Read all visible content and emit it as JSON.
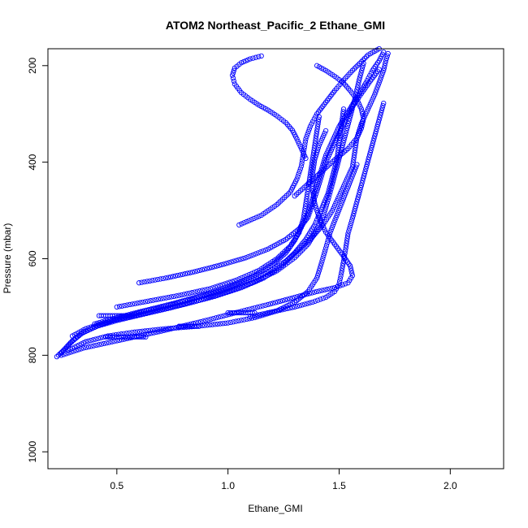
{
  "chart_data": {
    "type": "scatter",
    "title": "ATOM2 Northeast_Pacific_2 Ethane_GMI",
    "xlabel": "Ethane_GMI",
    "ylabel": "Pressure (mbar)",
    "xlim": [
      0.19,
      2.24
    ],
    "ylim": [
      1035,
      165
    ],
    "y_reversed": true,
    "x_ticks": [
      0.5,
      1.0,
      1.5,
      2.0
    ],
    "x_tick_labels": [
      "0.5",
      "1.0",
      "1.5",
      "2.0"
    ],
    "y_ticks": [
      200,
      400,
      600,
      800,
      1000
    ],
    "y_tick_labels": [
      "200",
      "400",
      "600",
      "800",
      "1000"
    ],
    "grid": false,
    "legend": "none",
    "marker": "open-circle",
    "point_color": "#0000ff",
    "series": [
      {
        "x": [
          0.23,
          0.26,
          0.3,
          0.35,
          0.42,
          0.5,
          0.6,
          0.72,
          0.85,
          0.98,
          1.08,
          1.18,
          1.26,
          1.32,
          1.38,
          1.43,
          1.47,
          1.5,
          1.53,
          1.56,
          1.57,
          1.58,
          1.6,
          1.63,
          1.66,
          1.68,
          1.7,
          1.71,
          1.72
        ],
        "y": [
          803,
          790,
          770,
          752,
          738,
          725,
          712,
          698,
          682,
          665,
          648,
          628,
          605,
          580,
          555,
          528,
          500,
          470,
          440,
          410,
          380,
          350,
          320,
          290,
          260,
          235,
          210,
          190,
          175
        ]
      },
      {
        "x": [
          0.25,
          0.29,
          0.34,
          0.41,
          0.5,
          0.61,
          0.74,
          0.87,
          1.0,
          1.12,
          1.22,
          1.3,
          1.36,
          1.4,
          1.43,
          1.45,
          1.47,
          1.49,
          1.51,
          1.53,
          1.55,
          1.57,
          1.59,
          1.61
        ],
        "y": [
          795,
          775,
          755,
          740,
          728,
          716,
          702,
          686,
          668,
          648,
          625,
          598,
          570,
          540,
          510,
          478,
          445,
          410,
          375,
          340,
          305,
          270,
          230,
          195
        ]
      },
      {
        "x": [
          0.3,
          0.36,
          0.44,
          0.54,
          0.66,
          0.8,
          0.94,
          1.06,
          1.16,
          1.24,
          1.3,
          1.35,
          1.39,
          1.42,
          1.45,
          1.47,
          1.49,
          1.5,
          1.51,
          1.52
        ],
        "y": [
          760,
          745,
          733,
          722,
          710,
          695,
          678,
          660,
          640,
          615,
          588,
          560,
          530,
          498,
          465,
          430,
          395,
          360,
          325,
          290
        ]
      },
      {
        "x": [
          0.4,
          0.5,
          0.62,
          0.76,
          0.9,
          1.02,
          1.12,
          1.2,
          1.26,
          1.3,
          1.33,
          1.36,
          1.38,
          1.4,
          1.42,
          1.44,
          1.47,
          1.5,
          1.54,
          1.58,
          1.62,
          1.65,
          1.68,
          1.7
        ],
        "y": [
          735,
          722,
          708,
          692,
          674,
          655,
          635,
          612,
          588,
          562,
          535,
          506,
          476,
          446,
          416,
          386,
          356,
          326,
          296,
          266,
          236,
          210,
          190,
          172
        ]
      },
      {
        "x": [
          0.25,
          0.35,
          0.5,
          0.7,
          0.9,
          1.05,
          1.18,
          1.3,
          1.4,
          1.48,
          1.54,
          1.56,
          1.55,
          1.52,
          1.48,
          1.44,
          1.41,
          1.39,
          1.38,
          1.38,
          1.39,
          1.41,
          1.44
        ],
        "y": [
          800,
          785,
          770,
          750,
          728,
          710,
          695,
          680,
          668,
          660,
          650,
          635,
          615,
          595,
          570,
          545,
          515,
          485,
          455,
          425,
          395,
          365,
          335
        ]
      },
      {
        "x": [
          1.1,
          1.2,
          1.3,
          1.38,
          1.44,
          1.48,
          1.5,
          1.51,
          1.52,
          1.53,
          1.54,
          1.56,
          1.58,
          1.6,
          1.62,
          1.64,
          1.66,
          1.68,
          1.7
        ],
        "y": [
          720,
          710,
          700,
          690,
          680,
          668,
          652,
          630,
          605,
          578,
          548,
          516,
          482,
          448,
          414,
          380,
          346,
          312,
          278
        ]
      },
      {
        "x": [
          0.28,
          0.36,
          0.46,
          0.58,
          0.72,
          0.86,
          1.0,
          1.12,
          1.22,
          1.3,
          1.36,
          1.4,
          1.42,
          1.44,
          1.46,
          1.49,
          1.52,
          1.55,
          1.58
        ],
        "y": [
          790,
          772,
          760,
          752,
          745,
          740,
          733,
          722,
          708,
          690,
          668,
          640,
          610,
          578,
          545,
          510,
          475,
          440,
          405
        ]
      },
      {
        "x": [
          0.6,
          0.72,
          0.84,
          0.96,
          1.08,
          1.18,
          1.26,
          1.32,
          1.36,
          1.38,
          1.4,
          1.42,
          1.44,
          1.47,
          1.5,
          1.53,
          1.56,
          1.6,
          1.64,
          1.68
        ],
        "y": [
          650,
          640,
          628,
          614,
          598,
          580,
          560,
          538,
          514,
          488,
          460,
          430,
          400,
          370,
          340,
          312,
          285,
          258,
          232,
          208
        ]
      },
      {
        "x": [
          0.5,
          0.64,
          0.78,
          0.92,
          1.04,
          1.14,
          1.22,
          1.28,
          1.32,
          1.34,
          1.35,
          1.36,
          1.37,
          1.38,
          1.39,
          1.4,
          1.41
        ],
        "y": [
          700,
          688,
          676,
          662,
          644,
          624,
          600,
          574,
          546,
          516,
          486,
          456,
          426,
          396,
          366,
          336,
          306
        ]
      },
      {
        "x": [
          1.05,
          1.15,
          1.22,
          1.28,
          1.31,
          1.33,
          1.34,
          1.35,
          1.37,
          1.4,
          1.44,
          1.48,
          1.52,
          1.56,
          1.6,
          1.63,
          1.66,
          1.68
        ],
        "y": [
          530,
          510,
          488,
          462,
          435,
          408,
          380,
          352,
          326,
          300,
          276,
          252,
          230,
          210,
          192,
          178,
          170,
          165
        ]
      },
      {
        "x": [
          1.15,
          1.1,
          1.06,
          1.03,
          1.02,
          1.03,
          1.06,
          1.1,
          1.14,
          1.18,
          1.22,
          1.26,
          1.29,
          1.31,
          1.33,
          1.35
        ],
        "y": [
          180,
          186,
          194,
          205,
          220,
          238,
          256,
          270,
          282,
          292,
          304,
          318,
          334,
          352,
          372,
          392
        ]
      },
      {
        "x": [
          1.3,
          1.36,
          1.42,
          1.48,
          1.54,
          1.58,
          1.6,
          1.61,
          1.6,
          1.58,
          1.55,
          1.52,
          1.48,
          1.44,
          1.4
        ],
        "y": [
          470,
          445,
          420,
          395,
          372,
          350,
          330,
          310,
          290,
          270,
          252,
          236,
          222,
          210,
          200
        ]
      },
      {
        "x": [
          0.45,
          0.48,
          0.51,
          0.54,
          0.57,
          0.6,
          0.63
        ],
        "y": [
          762,
          762,
          762,
          762,
          762,
          762,
          762
        ]
      },
      {
        "x": [
          0.78,
          0.81,
          0.84,
          0.87
        ],
        "y": [
          740,
          740,
          740,
          740
        ]
      },
      {
        "x": [
          1.0,
          1.03,
          1.06,
          1.09,
          1.12
        ],
        "y": [
          712,
          712,
          712,
          712,
          712
        ]
      },
      {
        "x": [
          0.42,
          0.45,
          0.48,
          0.51,
          0.54,
          0.57
        ],
        "y": [
          718,
          718,
          718,
          718,
          718,
          718
        ]
      }
    ]
  }
}
